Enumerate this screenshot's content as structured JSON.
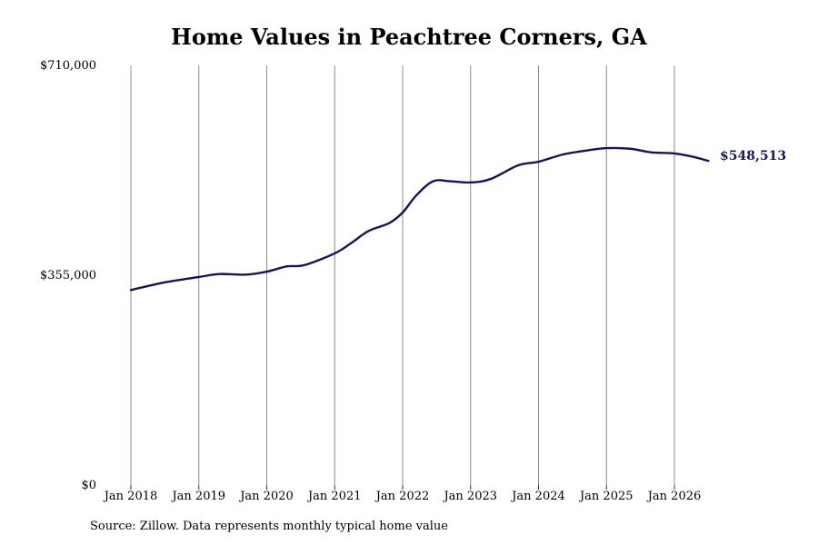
{
  "chart_data": {
    "type": "line",
    "title": "Home Values in Peachtree Corners, GA",
    "xlabel": "",
    "ylabel": "",
    "y_ticks": [
      "$0",
      "$355,000",
      "$710,000"
    ],
    "ylim": [
      0,
      710000
    ],
    "x_ticks": [
      "Jan 2018",
      "Jan 2019",
      "Jan 2020",
      "Jan 2021",
      "Jan 2022",
      "Jan 2023",
      "Jan 2024",
      "Jan 2025",
      "Jan 2026"
    ],
    "grid": "vertical",
    "end_label": "$548,513",
    "line_color": "#15155a",
    "series": [
      {
        "x": [
          2018.0,
          2018.5,
          2019.0,
          2019.3,
          2019.7,
          2020.0,
          2020.3,
          2020.55,
          2021.0,
          2021.25,
          2021.5,
          2021.8,
          2022.0,
          2022.2,
          2022.45,
          2022.7,
          2023.0,
          2023.3,
          2023.7,
          2024.0,
          2024.35,
          2024.65,
          2025.0,
          2025.35,
          2025.65,
          2026.0,
          2026.25,
          2026.5
        ],
        "y": [
          330000,
          343000,
          352000,
          357000,
          356000,
          361000,
          370000,
          372000,
          392000,
          410000,
          430000,
          443000,
          461000,
          490000,
          514000,
          514000,
          512000,
          518000,
          541000,
          547000,
          559000,
          565000,
          570000,
          569000,
          563000,
          561000,
          556000,
          548513
        ]
      }
    ]
  },
  "footer": {
    "source": "Source: Zillow. Data represents monthly typical home value"
  }
}
